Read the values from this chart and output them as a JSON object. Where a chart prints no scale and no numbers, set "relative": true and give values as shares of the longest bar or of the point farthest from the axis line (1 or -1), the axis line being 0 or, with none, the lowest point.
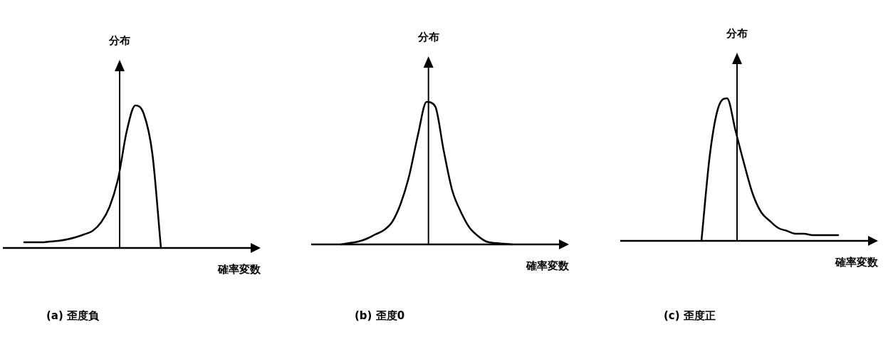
{
  "chart_data": [
    {
      "type": "line",
      "title": "(a) 歪度負",
      "xlabel": "確率変数",
      "ylabel": "分布",
      "relative": true,
      "categories": [
        null,
        null,
        null,
        null,
        null,
        null,
        null,
        null,
        null,
        null,
        null,
        null,
        null,
        null,
        null,
        null,
        null,
        null,
        null,
        null,
        null,
        null,
        null,
        null,
        null,
        null,
        null,
        null,
        null,
        null
      ],
      "series": [
        {
          "color": "#000000",
          "values": [
            null,
            null,
            0.04,
            0.04,
            0.04,
            0.045,
            0.05,
            0.06,
            0.075,
            0.095,
            0.12,
            0.18,
            0.29,
            0.49,
            0.82,
            1,
            0.94,
            0.66,
            0,
            null,
            null,
            null,
            null,
            null,
            null,
            null,
            null,
            null,
            null,
            null
          ]
        }
      ]
    },
    {
      "type": "line",
      "title": "(b) 歪度0",
      "xlabel": "確率変数",
      "ylabel": "分布",
      "relative": true,
      "categories": [
        null,
        null,
        null,
        null,
        null,
        null,
        null,
        null,
        null,
        null,
        null,
        null,
        null,
        null,
        null,
        null,
        null,
        null,
        null,
        null,
        null,
        null,
        null,
        null,
        null,
        null,
        null,
        null,
        null,
        null
      ],
      "series": [
        {
          "color": "#000000",
          "values": [
            null,
            null,
            null,
            0,
            0.01,
            0.02,
            0.04,
            0.07,
            0.1,
            0.16,
            0.29,
            0.49,
            0.77,
            1,
            0.97,
            0.66,
            0.38,
            0.23,
            0.12,
            0.06,
            0.02,
            0.01,
            0.005,
            0,
            null,
            null,
            null,
            null,
            null,
            null
          ]
        }
      ]
    },
    {
      "type": "line",
      "title": "(c) 歪度正",
      "xlabel": "確率変数",
      "ylabel": "分布",
      "relative": true,
      "categories": [
        null,
        null,
        null,
        null,
        null,
        null,
        null,
        null,
        null,
        null,
        null,
        null,
        null,
        null,
        null,
        null,
        null,
        null,
        null,
        null,
        null,
        null,
        null,
        null,
        null,
        null,
        null,
        null,
        null,
        null
      ],
      "series": [
        {
          "color": "#000000",
          "values": [
            null,
            null,
            null,
            null,
            null,
            null,
            null,
            null,
            null,
            0,
            0.61,
            0.94,
            1,
            0.77,
            0.54,
            0.33,
            0.2,
            0.14,
            0.09,
            0.07,
            0.05,
            0.05,
            0.04,
            0.04,
            0.04,
            0.04,
            null,
            null,
            null,
            null
          ]
        }
      ]
    }
  ]
}
